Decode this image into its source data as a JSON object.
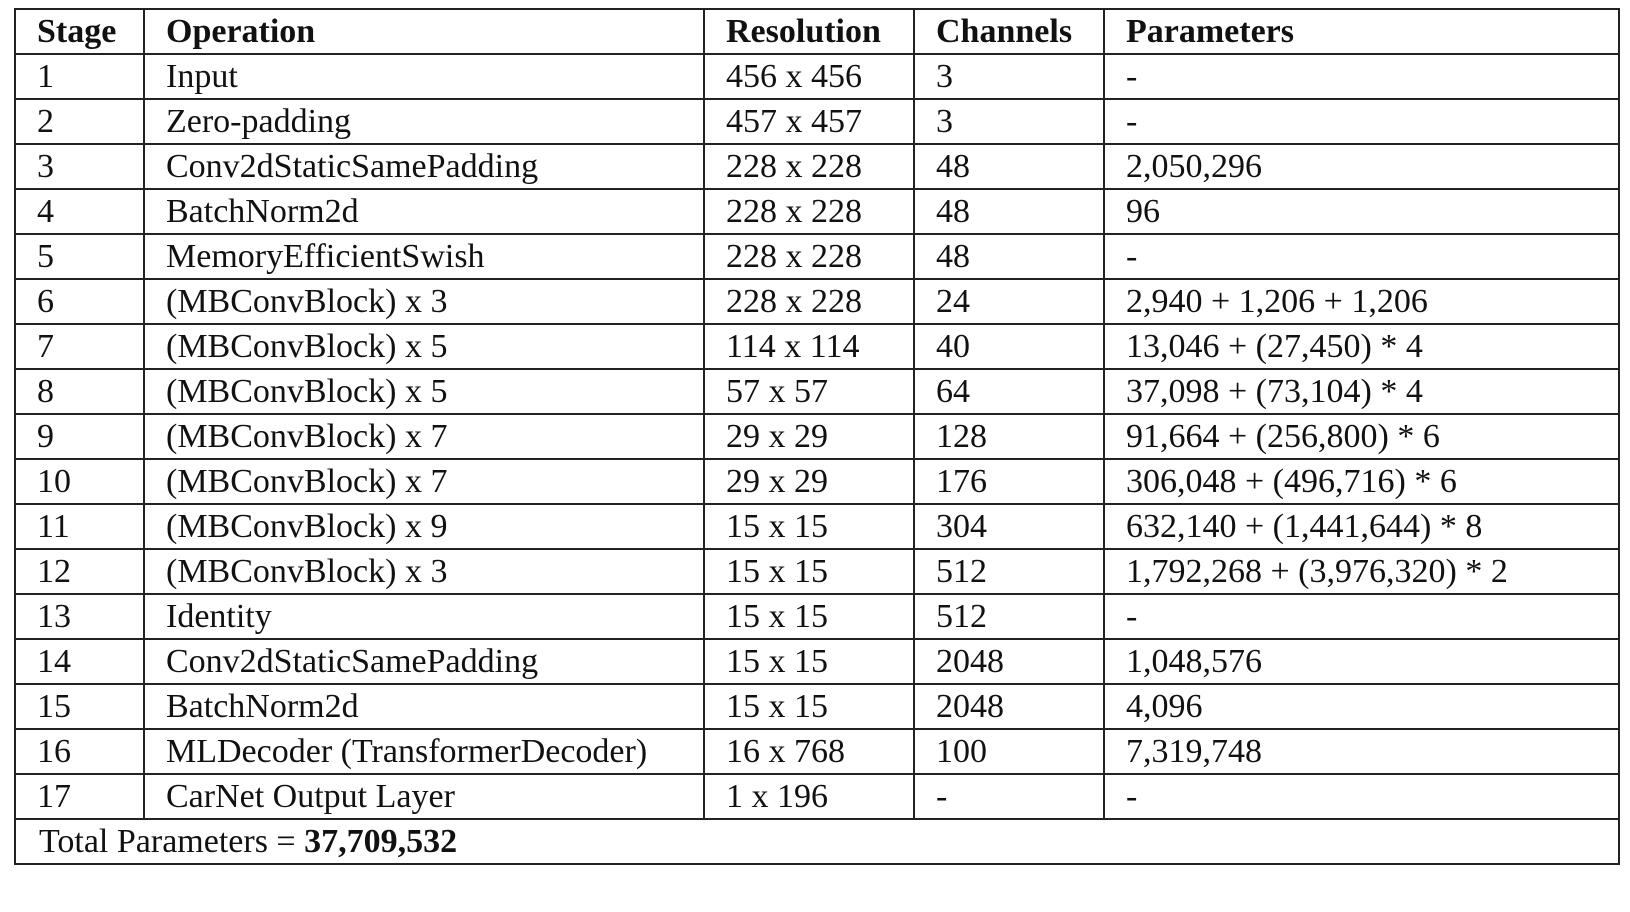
{
  "table": {
    "headers": [
      "Stage",
      "Operation",
      "Resolution",
      "Channels",
      "Parameters"
    ],
    "rows": [
      [
        "1",
        "Input",
        "456 x 456",
        "3",
        "-"
      ],
      [
        "2",
        "Zero-padding",
        "457 x 457",
        "3",
        "-"
      ],
      [
        "3",
        "Conv2dStaticSamePadding",
        "228 x 228",
        "48",
        "2,050,296"
      ],
      [
        "4",
        "BatchNorm2d",
        "228 x 228",
        "48",
        "96"
      ],
      [
        "5",
        "MemoryEfficientSwish",
        "228 x 228",
        "48",
        "-"
      ],
      [
        "6",
        "(MBConvBlock) x 3",
        "228 x 228",
        "24",
        "2,940 + 1,206 + 1,206"
      ],
      [
        "7",
        "(MBConvBlock) x 5",
        "114 x 114",
        "40",
        "13,046 + (27,450) * 4"
      ],
      [
        "8",
        "(MBConvBlock) x 5",
        "57 x 57",
        "64",
        "37,098 + (73,104) * 4"
      ],
      [
        "9",
        "(MBConvBlock) x 7",
        "29 x 29",
        "128",
        "91,664 + (256,800) * 6"
      ],
      [
        "10",
        "(MBConvBlock) x 7",
        "29 x 29",
        "176",
        "306,048 + (496,716) * 6"
      ],
      [
        "11",
        "(MBConvBlock) x 9",
        "15 x 15",
        "304",
        "632,140 + (1,441,644) * 8"
      ],
      [
        "12",
        "(MBConvBlock) x 3",
        "15 x 15",
        "512",
        "1,792,268 + (3,976,320) * 2"
      ],
      [
        "13",
        "Identity",
        "15 x 15",
        "512",
        "-"
      ],
      [
        "14",
        "Conv2dStaticSamePadding",
        "15 x 15",
        "2048",
        "1,048,576"
      ],
      [
        "15",
        "BatchNorm2d",
        "15 x 15",
        "2048",
        "4,096"
      ],
      [
        "16",
        "MLDecoder (TransformerDecoder)",
        "16 x 768",
        "100",
        "7,319,748"
      ],
      [
        "17",
        "CarNet Output Layer",
        "1 x 196",
        "-",
        "-"
      ]
    ],
    "total_label": "Total Parameters = ",
    "total_value": "37,709,532"
  }
}
